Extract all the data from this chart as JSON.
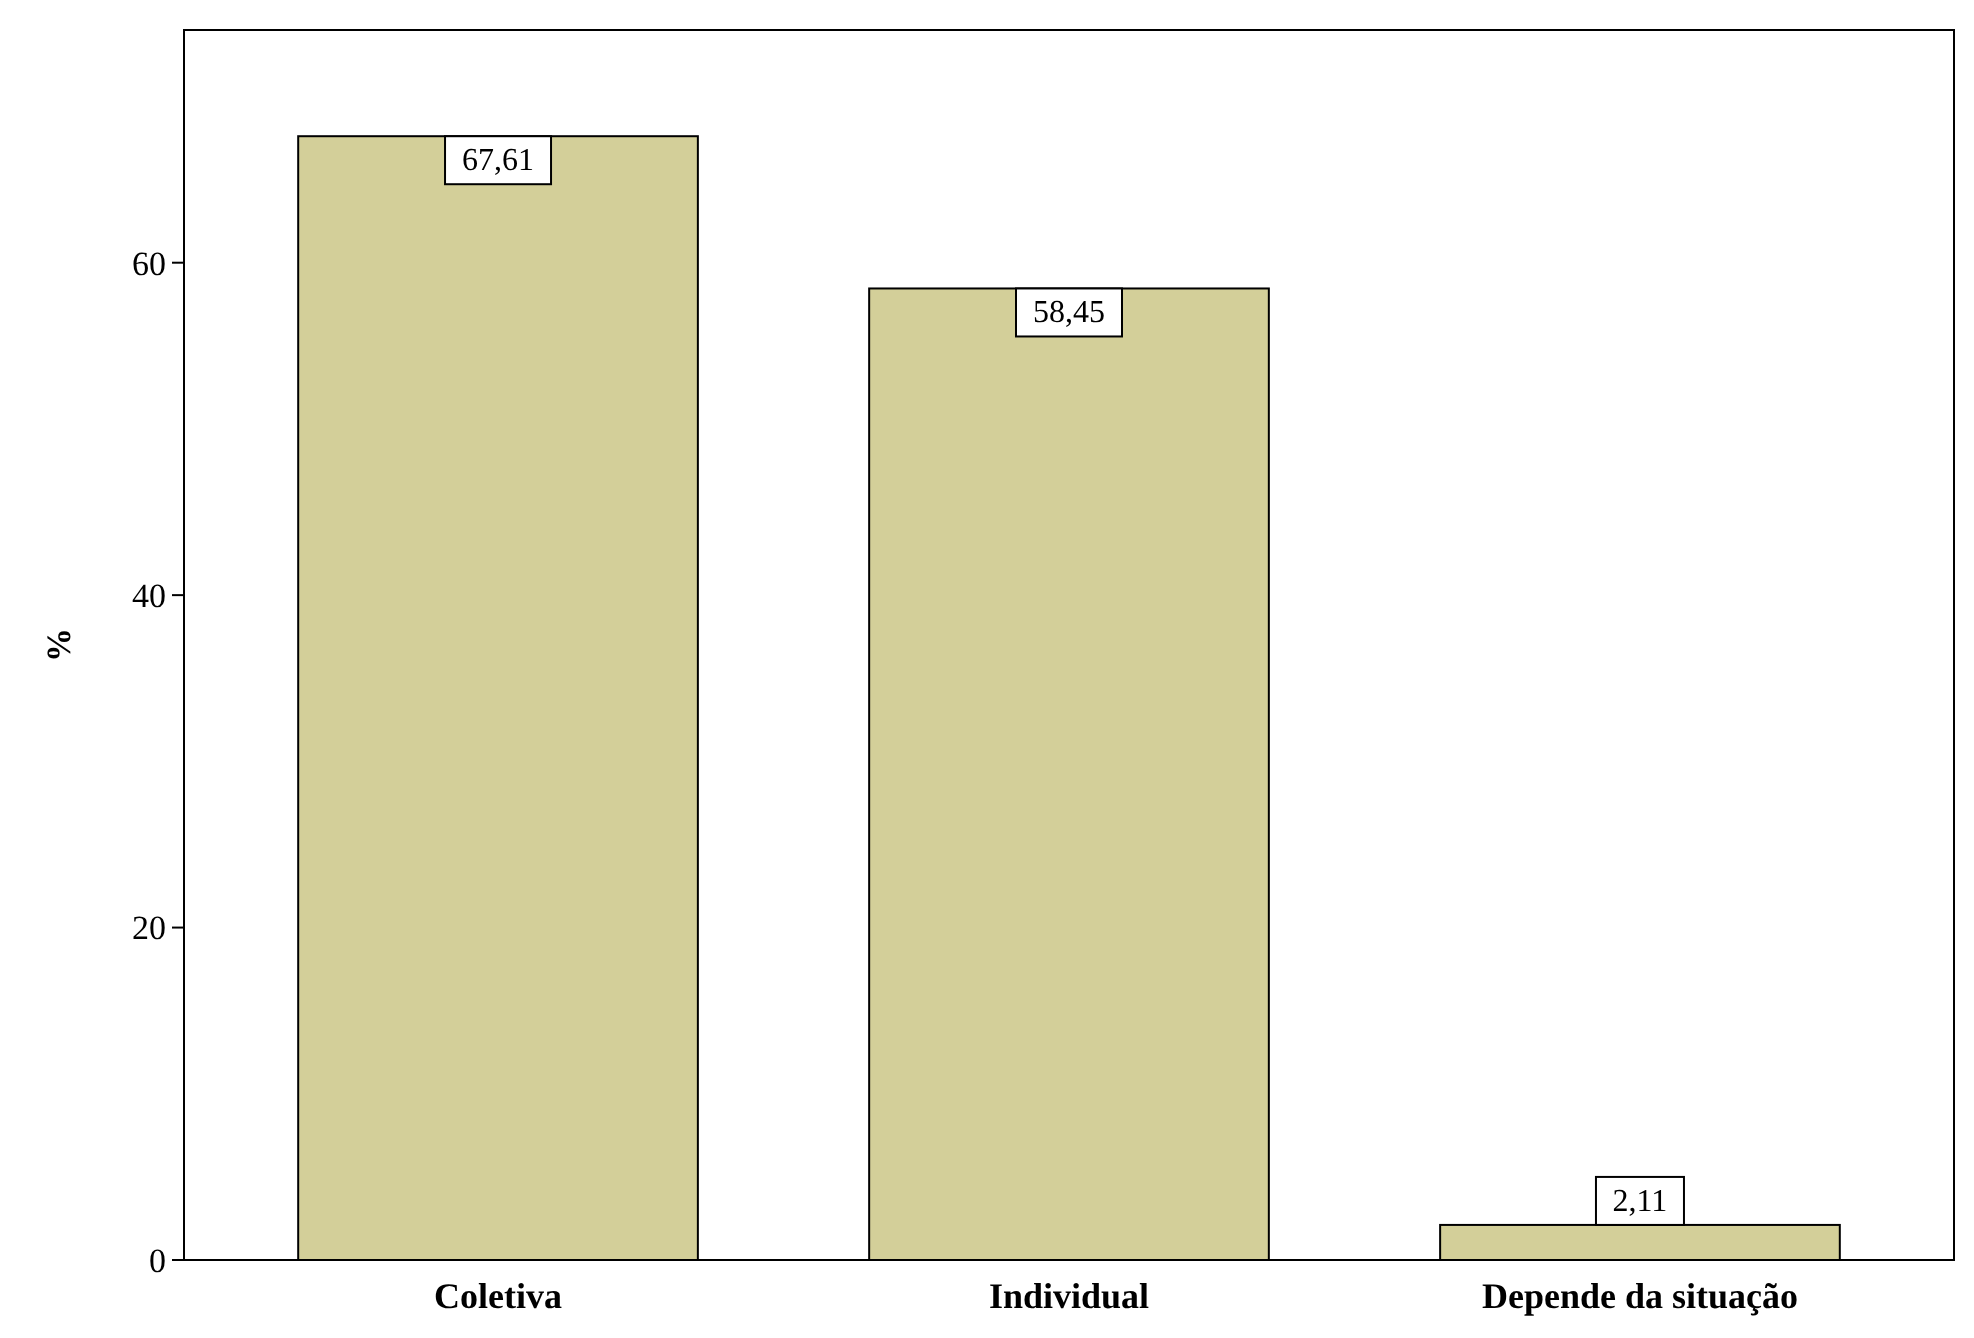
{
  "chart_data": {
    "type": "bar",
    "ylabel": "%",
    "categories": [
      "Coletiva",
      "Individual",
      "Depende da situação"
    ],
    "values": [
      67.61,
      58.45,
      2.11
    ],
    "value_labels": [
      "67,61",
      "58,45",
      "2,11"
    ],
    "color": "#d3cf99",
    "ylim": [
      0,
      74
    ],
    "yticks": [
      0,
      20,
      40,
      60
    ],
    "grid": false
  }
}
